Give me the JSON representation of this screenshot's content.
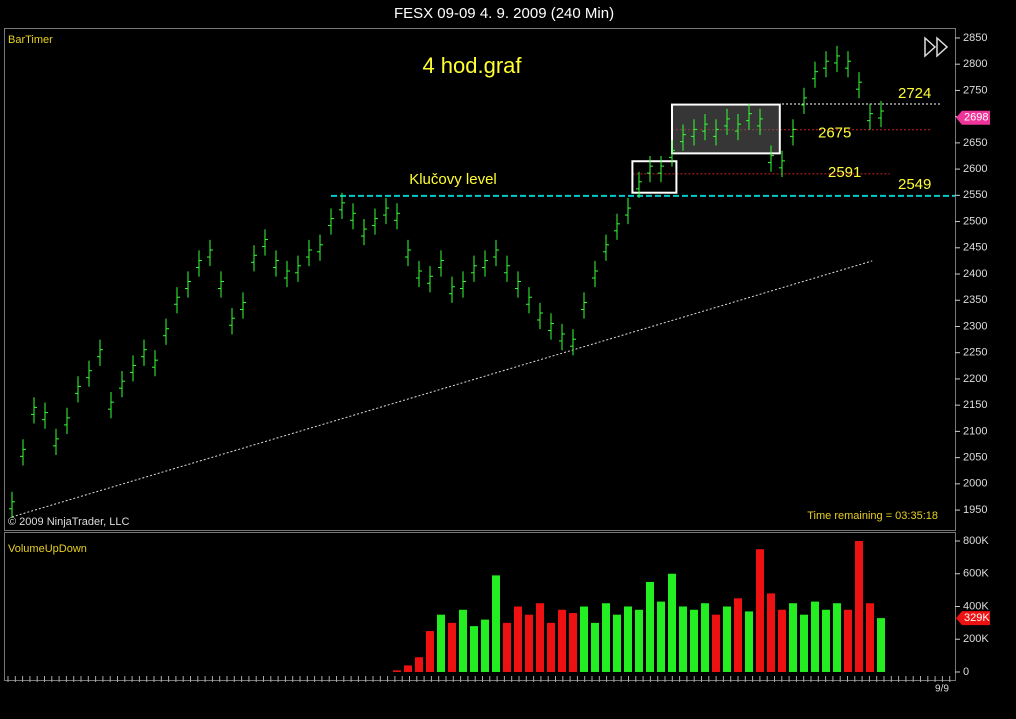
{
  "window_title": "FESX 09-09  4. 9. 2009 (240 Min)",
  "chart_data": {
    "type": "ohlc",
    "indicator_top": "BarTimer",
    "copyright": "© 2009 NinjaTrader, LLC",
    "time_remaining": "Time remaining = 03:35:18",
    "annotation": "4 hod.graf",
    "key_level_label": "Klučovy level",
    "ylim": [
      1912,
      2869
    ],
    "yticks": [
      1950,
      2000,
      2050,
      2100,
      2150,
      2200,
      2250,
      2300,
      2350,
      2400,
      2450,
      2500,
      2550,
      2600,
      2650,
      2700,
      2750,
      2800,
      2850
    ],
    "high": [
      1985,
      2085,
      2165,
      2155,
      2105,
      2145,
      2205,
      2235,
      2275,
      2175,
      2215,
      2245,
      2275,
      2255,
      2315,
      2375,
      2405,
      2445,
      2465,
      2405,
      2335,
      2365,
      2455,
      2485,
      2445,
      2425,
      2435,
      2465,
      2475,
      2525,
      2555,
      2535,
      2505,
      2525,
      2545,
      2535,
      2465,
      2425,
      2415,
      2445,
      2395,
      2405,
      2435,
      2445,
      2465,
      2435,
      2405,
      2375,
      2345,
      2325,
      2305,
      2295,
      2365,
      2425,
      2475,
      2515,
      2545,
      2595,
      2625,
      2625,
      2655,
      2685,
      2695,
      2705,
      2695,
      2715,
      2705,
      2725,
      2715,
      2645,
      2635,
      2695,
      2755,
      2805,
      2825,
      2835,
      2825,
      2785,
      2725,
      2730
    ],
    "low": [
      1935,
      2035,
      2115,
      2105,
      2055,
      2095,
      2155,
      2185,
      2225,
      2125,
      2165,
      2195,
      2225,
      2205,
      2265,
      2325,
      2355,
      2395,
      2415,
      2355,
      2285,
      2315,
      2405,
      2435,
      2395,
      2375,
      2385,
      2415,
      2425,
      2475,
      2505,
      2485,
      2455,
      2475,
      2495,
      2485,
      2415,
      2375,
      2365,
      2395,
      2345,
      2355,
      2385,
      2395,
      2415,
      2385,
      2355,
      2325,
      2295,
      2275,
      2255,
      2245,
      2315,
      2375,
      2425,
      2465,
      2495,
      2545,
      2575,
      2575,
      2605,
      2635,
      2645,
      2655,
      2645,
      2665,
      2655,
      2675,
      2665,
      2595,
      2585,
      2645,
      2705,
      2755,
      2775,
      2785,
      2775,
      2735,
      2675,
      2680
    ],
    "color": "#33ff33",
    "last_price": 2698,
    "levels": [
      {
        "value": 2549,
        "start": 29,
        "color": "#00cccc"
      },
      {
        "value": 2724,
        "start": 70,
        "color": "#ffffff"
      },
      {
        "value": 2675,
        "start": 60,
        "color": "#cc2222"
      },
      {
        "value": 2591,
        "start": 56.4,
        "color": "#cc2222"
      }
    ],
    "boxes": [
      {
        "x": [
          56.4,
          60.4
        ],
        "y": [
          2555,
          2615
        ]
      },
      {
        "x": [
          60,
          69.8
        ],
        "y": [
          2630,
          2723
        ]
      }
    ],
    "trendline": {
      "x": [
        0,
        78.2
      ],
      "y": [
        1937,
        2425
      ]
    },
    "volume_indicator": "VolumeUpDown",
    "volume_ylim": [
      -49000,
      855000
    ],
    "volume_yticks": [
      0,
      {
        "value": 200000,
        "label": "200K"
      },
      {
        "value": 400000,
        "label": "400K"
      },
      {
        "value": 600000,
        "label": "600K"
      },
      {
        "value": 800000,
        "label": "800K"
      }
    ],
    "volume": [
      0,
      0,
      0,
      0,
      0,
      0,
      0,
      0,
      0,
      0,
      0,
      0,
      0,
      0,
      0,
      0,
      0,
      0,
      0,
      0,
      0,
      0,
      0,
      0,
      0,
      0,
      0,
      0,
      0,
      0,
      0,
      0,
      0,
      0,
      0,
      10000,
      40000,
      90000,
      250000,
      350000,
      300000,
      380000,
      280000,
      320000,
      590000,
      300000,
      400000,
      350000,
      420000,
      300000,
      380000,
      360000,
      400000,
      300000,
      420000,
      350000,
      400000,
      380000,
      550000,
      430000,
      600000,
      400000,
      380000,
      420000,
      350000,
      400000,
      450000,
      370000,
      750000,
      480000,
      380000,
      420000,
      350000,
      430000,
      380000,
      420000,
      380000,
      800000,
      420000,
      329000
    ],
    "volume_value_labels_last": "329K",
    "up_color": "#22ee22",
    "down_color": "#ee1111",
    "x_label": "9/9"
  }
}
